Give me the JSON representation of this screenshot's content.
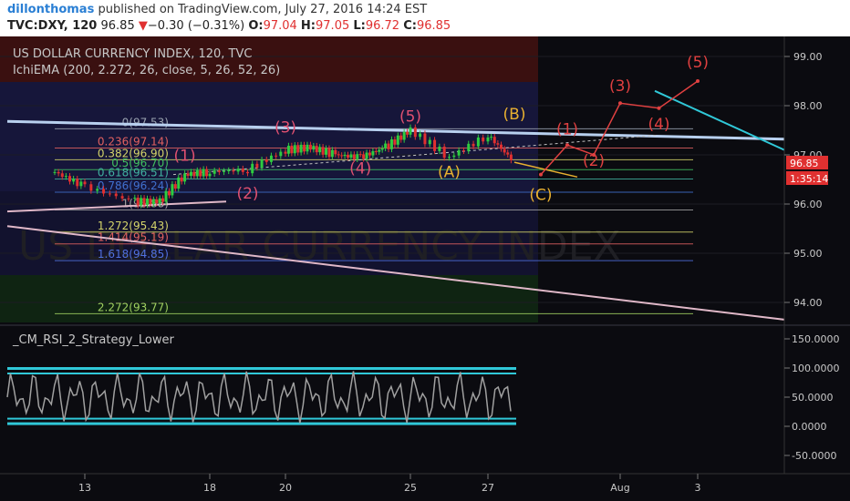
{
  "header": {
    "user": "dillonthomas",
    "published": "published on TradingView.com, July 27, 2016 14:24 EST",
    "symbol": "TVC:DXY, 120",
    "last": "96.85",
    "change_arrow": "▼",
    "change": "−0.30 (−0.31%)",
    "o_label": "O:",
    "o": "97.04",
    "h_label": "H:",
    "h": "97.05",
    "l_label": "L:",
    "l": "96.72",
    "c_label": "C:",
    "c": "96.85"
  },
  "main_pane": {
    "title": "US DOLLAR CURRENCY INDEX, 120, TVC",
    "indicator": "IchiEMA (200, 2.272, 26, close, 5, 26, 52, 26)",
    "watermark": "US DOLLAR CURRENCY INDEX",
    "price_badge": "96.85",
    "timer_badge": "1:35:14"
  },
  "lower_pane": {
    "title": "_CM_RSI_2_Strategy_Lower"
  },
  "colors": {
    "up": "#2ecc40",
    "down": "#e03030",
    "fib": "#d4d46a",
    "trend": "#a8c8f0",
    "cyan": "#30c8d8",
    "wave_red": "#e04040",
    "wave_orange": "#e8b030",
    "wave_pink": "#d05080"
  },
  "chart_data": {
    "type": "line",
    "price_axis": {
      "ticks": [
        "99.00",
        "98.00",
        "97.00",
        "96.00",
        "95.00",
        "94.00"
      ],
      "range": [
        93.55,
        99.35
      ]
    },
    "rsi_axis": {
      "ticks": [
        "150.0000",
        "100.0000",
        "50.0000",
        "0.0000",
        "-50.0000"
      ],
      "range": [
        -95,
        170
      ]
    },
    "x_ticks": [
      "13",
      "18",
      "20",
      "25",
      "27",
      "Aug",
      "3"
    ],
    "fib_levels": [
      {
        "label": "0(97.53)",
        "value": 97.53,
        "color": "#9aa3b0"
      },
      {
        "label": "0.236(97.14)",
        "value": 97.14,
        "color": "#e06060"
      },
      {
        "label": "0.382(96.90)",
        "value": 96.9,
        "color": "#d4d46a"
      },
      {
        "label": "0.5(96.70)",
        "value": 96.7,
        "color": "#40c060"
      },
      {
        "label": "0.618(96.51)",
        "value": 96.51,
        "color": "#40b0a0"
      },
      {
        "label": "0.786(96.24)",
        "value": 96.24,
        "color": "#4070d0"
      },
      {
        "label": "1(95.88)",
        "value": 95.88,
        "color": "#a0a0a0"
      },
      {
        "label": "1.272(95.43)",
        "value": 95.43,
        "color": "#d4d46a"
      },
      {
        "label": "1.414(95.19)",
        "value": 95.19,
        "color": "#e06060"
      },
      {
        "label": "1.618(94.85)",
        "value": 94.85,
        "color": "#5070e0"
      },
      {
        "label": "2.272(93.77)",
        "value": 93.77,
        "color": "#a0d060"
      }
    ],
    "wave_labels": [
      {
        "label": "(1)",
        "x": 17,
        "y": 96.88,
        "color": "#e05070"
      },
      {
        "label": "(2)",
        "x": 19,
        "y": 96.11,
        "color": "#e05070"
      },
      {
        "label": "(3)",
        "x": 20,
        "y": 97.45,
        "color": "#e05070"
      },
      {
        "label": "(4)",
        "x": 23,
        "y": 96.62,
        "color": "#e05070"
      },
      {
        "label": "(5)",
        "x": 25,
        "y": 97.68,
        "color": "#e05070"
      },
      {
        "label": "(A)",
        "x": 26,
        "y": 96.55,
        "color": "#e8b030"
      },
      {
        "label": "(B)",
        "x": 28,
        "y": 97.72,
        "color": "#e8b030"
      },
      {
        "label": "(C)",
        "x": 29,
        "y": 96.08,
        "color": "#e8b030"
      },
      {
        "label": "(1)",
        "x": 30,
        "y": 97.42,
        "color": "#e04040"
      },
      {
        "label": "(2)",
        "x": 31,
        "y": 96.78,
        "color": "#e04040"
      },
      {
        "label": "(3)",
        "x": 32,
        "y": 98.3,
        "color": "#e04040"
      },
      {
        "label": "(4)",
        "x": 33,
        "y": 97.52,
        "color": "#e04040"
      },
      {
        "label": "(5)",
        "x": 34,
        "y": 98.78,
        "color": "#e04040"
      }
    ],
    "price_series": [
      {
        "x": 12,
        "y": 96.65
      },
      {
        "x": 13,
        "y": 96.35
      },
      {
        "x": 15,
        "y": 96.05
      },
      {
        "x": 16,
        "y": 96.05
      },
      {
        "x": 17,
        "y": 96.6
      },
      {
        "x": 18,
        "y": 96.65
      },
      {
        "x": 19,
        "y": 96.7
      },
      {
        "x": 20,
        "y": 97.1
      },
      {
        "x": 21,
        "y": 97.15
      },
      {
        "x": 22,
        "y": 97.0
      },
      {
        "x": 23,
        "y": 96.95
      },
      {
        "x": 24,
        "y": 97.15
      },
      {
        "x": 25,
        "y": 97.5
      },
      {
        "x": 26,
        "y": 96.95
      },
      {
        "x": 27,
        "y": 97.4
      },
      {
        "x": 28,
        "y": 96.85
      }
    ],
    "projection_red": [
      {
        "x": 29,
        "y": 96.6
      },
      {
        "x": 30,
        "y": 97.2
      },
      {
        "x": 31,
        "y": 97.0
      },
      {
        "x": 32,
        "y": 98.05
      },
      {
        "x": 33,
        "y": 97.95
      },
      {
        "x": 34,
        "y": 98.5
      }
    ],
    "rsi_band": {
      "upper": 100,
      "lower": 10
    }
  }
}
